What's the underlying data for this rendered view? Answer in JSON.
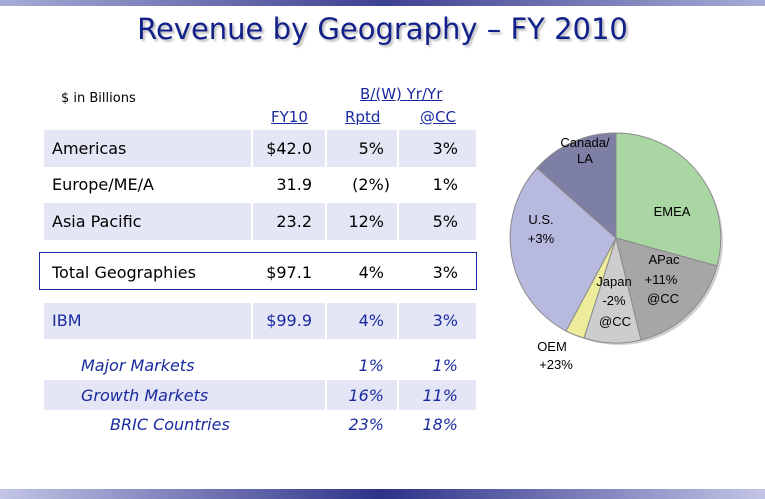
{
  "title": "Revenue by Geography – FY 2010",
  "units": "$ in Billions",
  "header": {
    "group": "B/(W) Yr/Yr",
    "fy10": "FY10",
    "rptd": "Rptd",
    "cc": "@CC"
  },
  "rows": [
    {
      "label": "Americas",
      "fy10": "$42.0",
      "rptd": "5%",
      "cc": "3%"
    },
    {
      "label": "Europe/ME/A",
      "fy10": "31.9",
      "rptd": "(2%)",
      "cc": "1%"
    },
    {
      "label": "Asia Pacific",
      "fy10": "23.2",
      "rptd": "12%",
      "cc": "5%"
    }
  ],
  "total": {
    "label": "Total Geographies",
    "fy10": "$97.1",
    "rptd": "4%",
    "cc": "3%"
  },
  "ibm": {
    "label": "IBM",
    "fy10": "$99.9",
    "rptd": "4%",
    "cc": "3%"
  },
  "markets": [
    {
      "label": "Major Markets",
      "rptd": "1%",
      "cc": "1%"
    },
    {
      "label": "Growth Markets",
      "rptd": "16%",
      "cc": "11%"
    },
    {
      "label": "BRIC Countries",
      "rptd": "23%",
      "cc": "18%"
    }
  ],
  "pie": {
    "labels": {
      "canada_1": "Canada/",
      "canada_2": "LA",
      "emea": "EMEA",
      "us_1": "U.S.",
      "us_2": "+3%",
      "apac_1": "APac",
      "apac_2": "+11%",
      "apac_3": "@CC",
      "japan_1": "Japan",
      "japan_2": "-2%",
      "japan_3": "@CC",
      "oem_1": "OEM",
      "oem_2": "+23%"
    },
    "colors": {
      "us": "#b7b9df",
      "canada": "#7d7fa5",
      "emea": "#a9d6a3",
      "apac": "#a6a6a6",
      "japan": "#cdcdcd",
      "oem": "#ecec9a"
    }
  }
}
